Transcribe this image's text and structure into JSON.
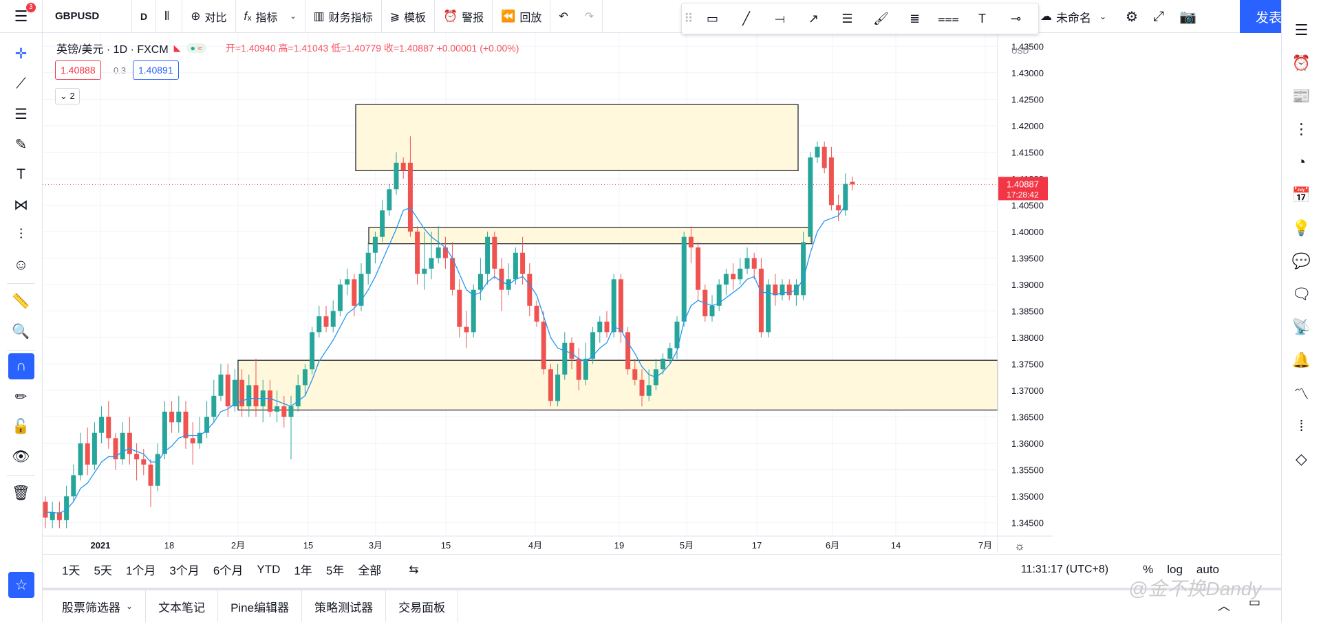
{
  "header": {
    "notification_count": "3",
    "symbol": "GBPUSD",
    "interval": "D",
    "compare_label": "对比",
    "indicators_label": "指标",
    "financials_label": "财务指标",
    "templates_label": "模板",
    "alert_label": "警报",
    "replay_label": "回放",
    "layout_name": "未命名",
    "publish_label": "发表"
  },
  "legend": {
    "title": "英镑/美元 · 1D · FXCM",
    "ohlc": "开=1.40940 高=1.41043 低=1.40779 收=1.40887 +0.00001 (+0.00%)",
    "bid": "1.40888",
    "spread": "0.3",
    "ask": "1.40891",
    "indicator_count": "2"
  },
  "price_axis": {
    "currency": "USD",
    "last_price": "1.40887",
    "countdown": "17:28:42"
  },
  "timeframes": [
    "1天",
    "5天",
    "1个月",
    "3个月",
    "6个月",
    "YTD",
    "1年",
    "5年",
    "全部"
  ],
  "clock": "11:31:17 (UTC+8)",
  "scale_options": [
    "%",
    "log",
    "auto"
  ],
  "bottom_tabs": [
    "股票筛选器",
    "文本笔记",
    "Pine编辑器",
    "策略测试器",
    "交易面板"
  ],
  "watermark": "@金不换Dandy",
  "colors": {
    "up": "#26a69a",
    "down": "#ef5350",
    "ma": "#2196f3",
    "zone": "#fff8dc",
    "accent": "#2962ff"
  },
  "chart_data": {
    "type": "candlestick",
    "ylim": [
      1.3425,
      1.4375
    ],
    "y_ticks": [
      1.345,
      1.35,
      1.355,
      1.36,
      1.365,
      1.37,
      1.375,
      1.38,
      1.385,
      1.39,
      1.395,
      1.4,
      1.405,
      1.41,
      1.415,
      1.42,
      1.425,
      1.43,
      1.435
    ],
    "x_ticks": [
      "2021",
      "18",
      "2月",
      "15",
      "3月",
      "15",
      "4月",
      "19",
      "5月",
      "17",
      "6月",
      "14",
      "7月"
    ],
    "zones": [
      {
        "y1": 1.4115,
        "y2": 1.424
      },
      {
        "y1": 1.3977,
        "y2": 1.4008
      },
      {
        "y1": 1.3663,
        "y2": 1.3757
      }
    ],
    "candles": [
      [
        1.349,
        1.346,
        1.344,
        1.35
      ],
      [
        1.3455,
        1.347,
        1.344,
        1.349
      ],
      [
        1.347,
        1.3455,
        1.344,
        1.349
      ],
      [
        1.3455,
        1.35,
        1.344,
        1.352
      ],
      [
        1.35,
        1.354,
        1.349,
        1.356
      ],
      [
        1.354,
        1.36,
        1.353,
        1.362
      ],
      [
        1.36,
        1.356,
        1.354,
        1.363
      ],
      [
        1.356,
        1.362,
        1.355,
        1.364
      ],
      [
        1.362,
        1.365,
        1.36,
        1.367
      ],
      [
        1.365,
        1.361,
        1.359,
        1.368
      ],
      [
        1.361,
        1.357,
        1.355,
        1.362
      ],
      [
        1.357,
        1.362,
        1.356,
        1.364
      ],
      [
        1.362,
        1.358,
        1.356,
        1.365
      ],
      [
        1.358,
        1.357,
        1.353,
        1.36
      ],
      [
        1.357,
        1.356,
        1.354,
        1.359
      ],
      [
        1.356,
        1.352,
        1.348,
        1.357
      ],
      [
        1.352,
        1.358,
        1.351,
        1.36
      ],
      [
        1.358,
        1.366,
        1.357,
        1.368
      ],
      [
        1.366,
        1.364,
        1.362,
        1.368
      ],
      [
        1.364,
        1.366,
        1.362,
        1.369
      ],
      [
        1.366,
        1.361,
        1.359,
        1.368
      ],
      [
        1.361,
        1.36,
        1.356,
        1.364
      ],
      [
        1.36,
        1.362,
        1.359,
        1.365
      ],
      [
        1.362,
        1.365,
        1.361,
        1.368
      ],
      [
        1.365,
        1.369,
        1.364,
        1.372
      ],
      [
        1.369,
        1.373,
        1.368,
        1.375
      ],
      [
        1.373,
        1.367,
        1.365,
        1.375
      ],
      [
        1.367,
        1.372,
        1.366,
        1.374
      ],
      [
        1.372,
        1.367,
        1.365,
        1.374
      ],
      [
        1.367,
        1.371,
        1.365,
        1.373
      ],
      [
        1.371,
        1.367,
        1.365,
        1.376
      ],
      [
        1.367,
        1.37,
        1.364,
        1.372
      ],
      [
        1.37,
        1.366,
        1.365,
        1.372
      ],
      [
        1.366,
        1.367,
        1.364,
        1.37
      ],
      [
        1.367,
        1.365,
        1.363,
        1.369
      ],
      [
        1.365,
        1.367,
        1.357,
        1.369
      ],
      [
        1.367,
        1.371,
        1.366,
        1.373
      ],
      [
        1.371,
        1.374,
        1.369,
        1.375
      ],
      [
        1.374,
        1.381,
        1.373,
        1.382
      ],
      [
        1.381,
        1.384,
        1.38,
        1.386
      ],
      [
        1.384,
        1.382,
        1.381,
        1.386
      ],
      [
        1.382,
        1.385,
        1.381,
        1.387
      ],
      [
        1.385,
        1.39,
        1.384,
        1.391
      ],
      [
        1.39,
        1.391,
        1.388,
        1.393
      ],
      [
        1.391,
        1.386,
        1.384,
        1.392
      ],
      [
        1.386,
        1.392,
        1.385,
        1.394
      ],
      [
        1.392,
        1.396,
        1.39,
        1.398
      ],
      [
        1.396,
        1.399,
        1.394,
        1.4
      ],
      [
        1.399,
        1.404,
        1.398,
        1.406
      ],
      [
        1.404,
        1.408,
        1.403,
        1.409
      ],
      [
        1.408,
        1.413,
        1.407,
        1.415
      ],
      [
        1.413,
        1.4115,
        1.41,
        1.414
      ],
      [
        1.413,
        1.4,
        1.399,
        1.418
      ],
      [
        1.4,
        1.392,
        1.39,
        1.401
      ],
      [
        1.392,
        1.393,
        1.389,
        1.4
      ],
      [
        1.393,
        1.395,
        1.391,
        1.4
      ],
      [
        1.395,
        1.397,
        1.394,
        1.401
      ],
      [
        1.397,
        1.395,
        1.393,
        1.399
      ],
      [
        1.395,
        1.389,
        1.388,
        1.398
      ],
      [
        1.389,
        1.382,
        1.38,
        1.391
      ],
      [
        1.382,
        1.381,
        1.378,
        1.385
      ],
      [
        1.381,
        1.389,
        1.38,
        1.39
      ],
      [
        1.389,
        1.392,
        1.387,
        1.395
      ],
      [
        1.392,
        1.399,
        1.39,
        1.4
      ],
      [
        1.399,
        1.393,
        1.391,
        1.4
      ],
      [
        1.393,
        1.389,
        1.385,
        1.395
      ],
      [
        1.389,
        1.391,
        1.388,
        1.394
      ],
      [
        1.391,
        1.396,
        1.39,
        1.397
      ],
      [
        1.396,
        1.392,
        1.39,
        1.399
      ],
      [
        1.392,
        1.386,
        1.384,
        1.394
      ],
      [
        1.386,
        1.383,
        1.382,
        1.387
      ],
      [
        1.383,
        1.374,
        1.373,
        1.385
      ],
      [
        1.374,
        1.368,
        1.367,
        1.375
      ],
      [
        1.368,
        1.373,
        1.367,
        1.375
      ],
      [
        1.373,
        1.379,
        1.372,
        1.381
      ],
      [
        1.379,
        1.376,
        1.374,
        1.38
      ],
      [
        1.376,
        1.372,
        1.37,
        1.378
      ],
      [
        1.372,
        1.376,
        1.371,
        1.379
      ],
      [
        1.376,
        1.381,
        1.375,
        1.382
      ],
      [
        1.381,
        1.383,
        1.379,
        1.384
      ],
      [
        1.383,
        1.381,
        1.38,
        1.385
      ],
      [
        1.381,
        1.391,
        1.38,
        1.392
      ],
      [
        1.391,
        1.381,
        1.379,
        1.392
      ],
      [
        1.381,
        1.374,
        1.373,
        1.382
      ],
      [
        1.374,
        1.372,
        1.371,
        1.376
      ],
      [
        1.372,
        1.369,
        1.367,
        1.374
      ],
      [
        1.369,
        1.371,
        1.368,
        1.374
      ],
      [
        1.371,
        1.374,
        1.37,
        1.376
      ],
      [
        1.374,
        1.376,
        1.373,
        1.377
      ],
      [
        1.376,
        1.378,
        1.375,
        1.379
      ],
      [
        1.378,
        1.383,
        1.376,
        1.384
      ],
      [
        1.383,
        1.399,
        1.382,
        1.4
      ],
      [
        1.399,
        1.397,
        1.394,
        1.401
      ],
      [
        1.397,
        1.389,
        1.387,
        1.398
      ],
      [
        1.389,
        1.384,
        1.383,
        1.39
      ],
      [
        1.384,
        1.386,
        1.383,
        1.388
      ],
      [
        1.386,
        1.39,
        1.385,
        1.391
      ],
      [
        1.39,
        1.392,
        1.388,
        1.393
      ],
      [
        1.392,
        1.391,
        1.389,
        1.394
      ],
      [
        1.391,
        1.393,
        1.39,
        1.395
      ],
      [
        1.393,
        1.395,
        1.392,
        1.397
      ],
      [
        1.395,
        1.393,
        1.391,
        1.396
      ],
      [
        1.393,
        1.381,
        1.38,
        1.395
      ],
      [
        1.381,
        1.39,
        1.38,
        1.391
      ],
      [
        1.39,
        1.388,
        1.386,
        1.392
      ],
      [
        1.388,
        1.39,
        1.387,
        1.391
      ],
      [
        1.39,
        1.388,
        1.387,
        1.391
      ],
      [
        1.388,
        1.39,
        1.386,
        1.391
      ],
      [
        1.388,
        1.398,
        1.387,
        1.4
      ],
      [
        1.399,
        1.414,
        1.398,
        1.415
      ],
      [
        1.414,
        1.416,
        1.413,
        1.417
      ],
      [
        1.416,
        1.412,
        1.411,
        1.417
      ],
      [
        1.414,
        1.405,
        1.404,
        1.416
      ],
      [
        1.405,
        1.404,
        1.402,
        1.407
      ],
      [
        1.404,
        1.409,
        1.403,
        1.411
      ],
      [
        1.4094,
        1.4089,
        1.4078,
        1.4104
      ]
    ],
    "ma": [
      1.347,
      1.347,
      1.3468,
      1.3475,
      1.349,
      1.3515,
      1.3525,
      1.3545,
      1.3565,
      1.3575,
      1.3575,
      1.3585,
      1.359,
      1.3585,
      1.358,
      1.3565,
      1.3565,
      1.3585,
      1.3595,
      1.361,
      1.3615,
      1.3615,
      1.3615,
      1.3625,
      1.364,
      1.366,
      1.3665,
      1.3675,
      1.368,
      1.3685,
      1.3685,
      1.3685,
      1.3685,
      1.368,
      1.3675,
      1.367,
      1.368,
      1.369,
      1.372,
      1.3755,
      1.3775,
      1.3795,
      1.382,
      1.3845,
      1.3855,
      1.387,
      1.389,
      1.3915,
      1.3945,
      1.3975,
      1.4005,
      1.404,
      1.4045,
      1.4025,
      1.4005,
      1.399,
      1.398,
      1.397,
      1.395,
      1.392,
      1.389,
      1.388,
      1.3885,
      1.3905,
      1.3915,
      1.3905,
      1.39,
      1.391,
      1.3915,
      1.39,
      1.388,
      1.384,
      1.38,
      1.378,
      1.3775,
      1.377,
      1.376,
      1.3755,
      1.3765,
      1.378,
      1.379,
      1.382,
      1.3815,
      1.379,
      1.377,
      1.3745,
      1.373,
      1.3725,
      1.3735,
      1.375,
      1.3775,
      1.383,
      1.386,
      1.387,
      1.3865,
      1.386,
      1.3865,
      1.3875,
      1.3885,
      1.3895,
      1.391,
      1.3915,
      1.3885,
      1.3885,
      1.388,
      1.3885,
      1.3885,
      1.389,
      1.391,
      1.396,
      1.4,
      1.402,
      1.4025,
      1.403,
      1.405
    ]
  }
}
